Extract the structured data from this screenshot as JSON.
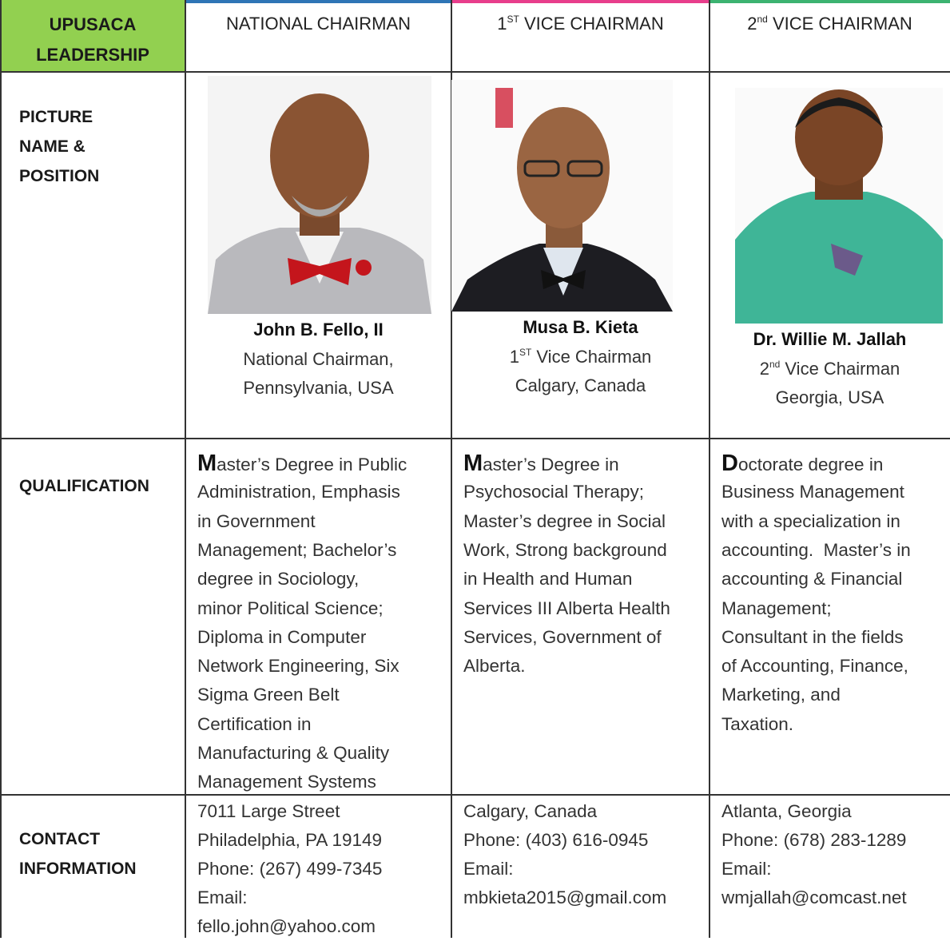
{
  "header": {
    "title": [
      "UPUSACA",
      "LEADERSHIP"
    ]
  },
  "row_labels": {
    "picture": [
      "PICTURE",
      "NAME &",
      "POSITION"
    ],
    "qualification": [
      "QUALIFICATION"
    ],
    "contact": [
      "CONTACT",
      "INFORMATION"
    ]
  },
  "columns": [
    {
      "heading": "NATIONAL CHAIRMAN",
      "name": "John B. Fello, II",
      "position_lines": [
        "National Chairman,",
        "Pennsylvania, USA"
      ],
      "qualification": [
        "Master’s Degree in Public",
        "Administration, Emphasis",
        "in Government",
        "Management; Bachelor’s",
        "degree in Sociology,",
        "minor Political Science;",
        "Diploma in Computer",
        "Network Engineering, Six",
        "Sigma Green Belt",
        "Certification in",
        "Manufacturing & Quality",
        "Management Systems"
      ],
      "contact": [
        "7011 Large Street",
        "Philadelphia, PA 19149",
        "Phone: (267) 499-7345",
        "Email:",
        "fello.john@yahoo.com"
      ]
    },
    {
      "heading": {
        "prefix": "1",
        "sup": "ST",
        "rest": " VICE CHAIRMAN"
      },
      "name": "Musa B. Kieta",
      "position_lines": [
        {
          "prefix": "1",
          "sup": "ST",
          "rest": " Vice Chairman"
        },
        "Calgary, Canada"
      ],
      "qualification": [
        "Master’s Degree in",
        "Psychosocial Therapy;",
        "Master’s degree in Social",
        "Work, Strong background",
        "in Health and Human",
        "Services III Alberta Health",
        "Services, Government of",
        "Alberta."
      ],
      "contact": [
        "Calgary, Canada",
        "Phone: (403) 616-0945",
        "Email:",
        "mbkieta2015@gmail.com"
      ]
    },
    {
      "heading": {
        "prefix": "2",
        "sup": "nd",
        "rest": " VICE CHAIRMAN"
      },
      "name": "Dr. Willie M. Jallah",
      "position_lines": [
        {
          "prefix": "2",
          "sup": "nd",
          "rest": " Vice Chairman"
        },
        "Georgia, USA"
      ],
      "qualification": [
        "Doctorate degree in",
        "Business Management",
        "with a specialization in",
        "accounting.  Master’s in",
        "accounting & Financial",
        "Management;",
        "Consultant in the fields",
        "of Accounting, Finance,",
        "Marketing, and",
        "Taxation."
      ],
      "contact": [
        "Atlanta, Georgia",
        "Phone: (678) 283-1289",
        "Email:",
        "wmjallah@comcast.net"
      ]
    }
  ]
}
